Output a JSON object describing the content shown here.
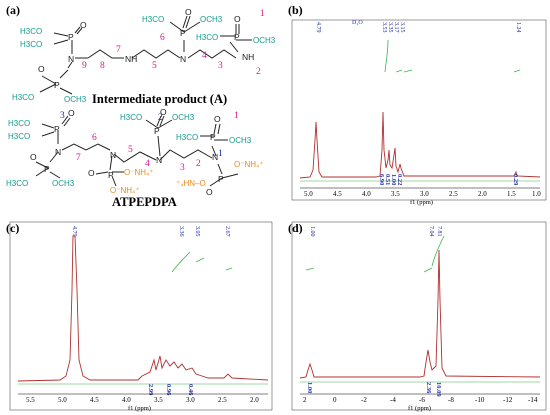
{
  "panels": {
    "a": {
      "label": "(a)",
      "intermediate_title": "Intermediate product (A)",
      "atpepdpa_title": "ATPEPDPA",
      "atoms": {
        "P": "P",
        "N": "N",
        "NH": "NH",
        "O": "O",
        "H": "H"
      },
      "groups": {
        "h3co": "H3CO",
        "och3": "OCH3",
        "o_minus_nh4": "O⁻NH₄⁺",
        "h4n_o": "⁺₄HN–O"
      },
      "numbers_A": [
        "1",
        "2",
        "3",
        "4",
        "5",
        "6",
        "7",
        "8",
        "9"
      ],
      "numbers_ATP": [
        "1",
        "1",
        "2",
        "2",
        "3",
        "4",
        "5",
        "6",
        "7",
        "3"
      ]
    },
    "b": {
      "label": "(b)",
      "solvent": "D₂O",
      "xlabel": "f1 (ppm)",
      "peak_labels": [
        "4.79",
        "3.53",
        "3.35",
        "3.17",
        "3.15",
        "1.24"
      ],
      "integrals": [
        "6.90",
        "0.51",
        "1.00",
        "0.22",
        "0.29"
      ],
      "ticks": [
        "5.0",
        "4.5",
        "4.0",
        "3.5",
        "3.0",
        "2.5",
        "2.0",
        "1.5",
        "1.0"
      ]
    },
    "c": {
      "label": "(c)",
      "xlabel": "f1 (ppm)",
      "peak_labels": [
        "4.79",
        "3.36",
        "3.05",
        "2.67"
      ],
      "integrals": [
        "2.99",
        "0.96",
        "0.46"
      ],
      "ticks": [
        "5.5",
        "5.0",
        "4.5",
        "4.0",
        "3.5",
        "3.0",
        "2.5",
        "2.0"
      ]
    },
    "d": {
      "label": "(d)",
      "xlabel": "f1 (ppm)",
      "peak_labels": [
        "1.00",
        "7.04",
        "7.81"
      ],
      "integrals": [
        "1.00",
        "2.36",
        "10.09"
      ],
      "ticks": [
        "2",
        "0",
        "-2",
        "-4",
        "-6",
        "-8",
        "-10",
        "-12",
        "-14"
      ]
    }
  },
  "colors": {
    "spectrum": "#b0302e",
    "integral": "#3cb44b",
    "label_blue": "#1f2aa8",
    "teal": "#149a8e",
    "orange": "#e98a1e",
    "magenta": "#e0158a"
  }
}
